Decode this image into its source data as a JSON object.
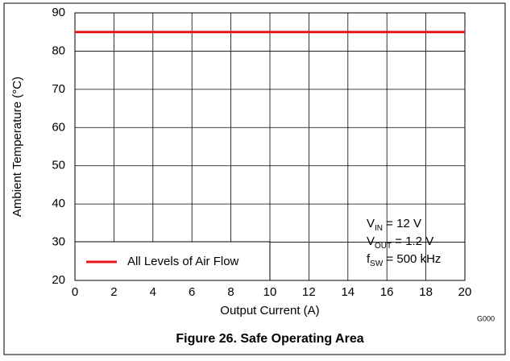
{
  "chart_data": {
    "type": "line",
    "title": "Figure 26. Safe Operating Area",
    "xlabel": "Output Current (A)",
    "ylabel": "Ambient Temperature (°C)",
    "figure_id": "G000",
    "x": [
      0,
      20
    ],
    "series": [
      {
        "name": "All Levels of Air Flow",
        "color": "#e8121a",
        "values": [
          85,
          85
        ]
      }
    ],
    "xlim": [
      0,
      20
    ],
    "xticks": [
      0,
      2,
      4,
      6,
      8,
      10,
      12,
      14,
      16,
      18,
      20
    ],
    "ylim": [
      20,
      90
    ],
    "yticks": [
      20,
      30,
      40,
      50,
      60,
      70,
      80,
      90
    ],
    "grid": true,
    "legend": "lower left",
    "annotations": [
      [
        "V",
        "IN",
        " = 12 V"
      ],
      [
        "V",
        "OUT",
        " = 1.2 V"
      ],
      [
        "f",
        "SW",
        " = 500 kHz"
      ]
    ]
  }
}
